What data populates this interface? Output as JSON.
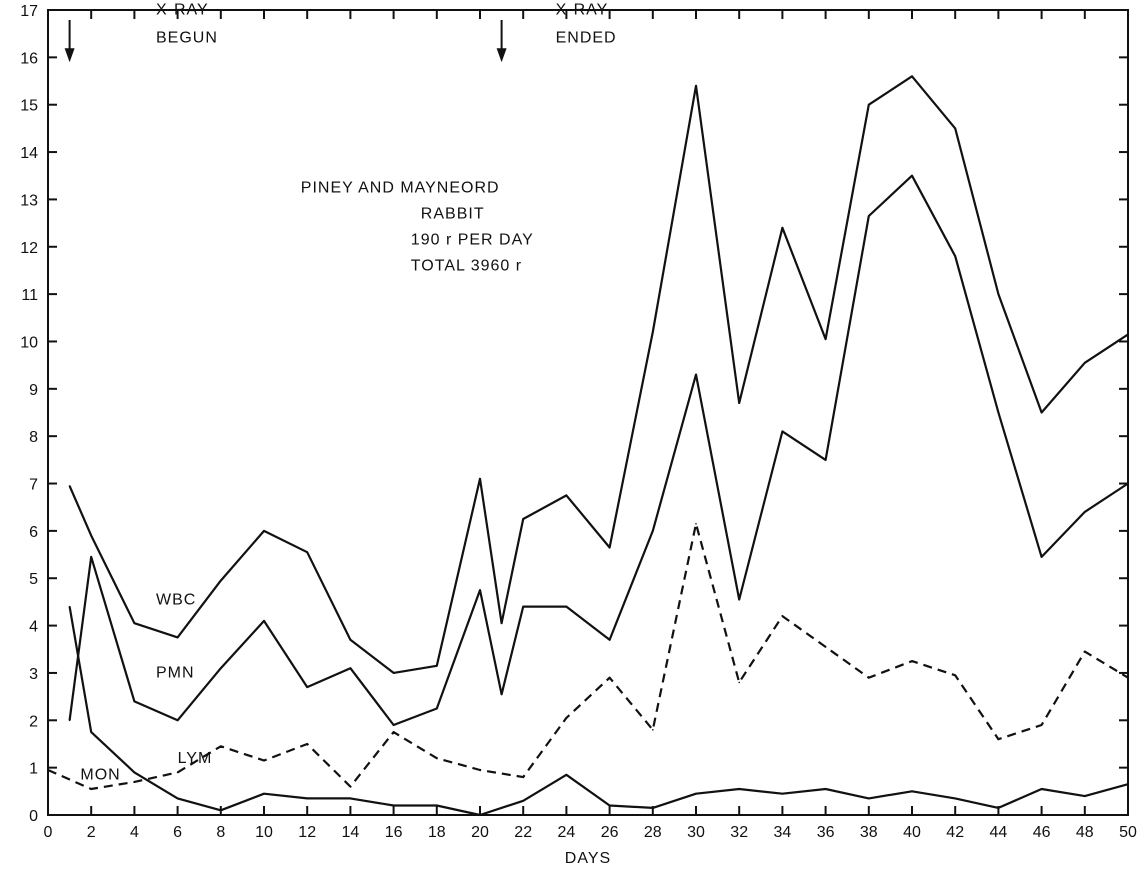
{
  "chart_data": {
    "type": "line",
    "title": "",
    "xlabel": "DAYS",
    "ylabel": "",
    "xlim": [
      0,
      50
    ],
    "ylim": [
      0,
      17
    ],
    "grid": false,
    "x_ticks": [
      0,
      2,
      4,
      6,
      8,
      10,
      12,
      14,
      16,
      18,
      20,
      22,
      24,
      26,
      28,
      30,
      32,
      34,
      36,
      38,
      40,
      42,
      44,
      46,
      48,
      50
    ],
    "y_ticks": [
      0,
      1,
      2,
      3,
      4,
      5,
      6,
      7,
      8,
      9,
      10,
      11,
      12,
      13,
      14,
      15,
      16,
      17
    ],
    "series": [
      {
        "name": "WBC",
        "style": "solid",
        "x": [
          1,
          2,
          4,
          6,
          8,
          10,
          12,
          14,
          16,
          18,
          20,
          21,
          22,
          24,
          26,
          28,
          30,
          32,
          34,
          36,
          38,
          40,
          42,
          44,
          46,
          48,
          50
        ],
        "y": [
          6.95,
          5.9,
          4.05,
          3.75,
          4.95,
          6.0,
          5.55,
          3.7,
          3.0,
          3.15,
          7.1,
          4.05,
          6.25,
          6.75,
          5.65,
          10.2,
          15.4,
          8.7,
          12.4,
          10.05,
          15.0,
          15.6,
          14.5,
          11.0,
          8.5,
          9.55,
          10.15
        ]
      },
      {
        "name": "PMN",
        "style": "solid",
        "x": [
          1,
          2,
          4,
          6,
          8,
          10,
          12,
          14,
          16,
          18,
          20,
          21,
          22,
          24,
          26,
          28,
          30,
          32,
          34,
          36,
          38,
          40,
          42,
          44,
          46,
          48,
          50
        ],
        "y": [
          2.0,
          5.45,
          2.4,
          2.0,
          3.1,
          4.1,
          2.7,
          3.1,
          1.9,
          2.25,
          4.75,
          2.55,
          4.4,
          4.4,
          3.7,
          6.0,
          9.3,
          4.55,
          8.1,
          7.5,
          12.65,
          13.5,
          11.8,
          8.5,
          5.45,
          6.4,
          7.0
        ]
      },
      {
        "name": "LYM",
        "style": "dashed",
        "x": [
          0,
          2,
          4,
          6,
          8,
          10,
          12,
          14,
          16,
          18,
          20,
          22,
          24,
          26,
          28,
          30,
          32,
          34,
          36,
          38,
          40,
          42,
          44,
          46,
          48,
          50
        ],
        "y": [
          0.95,
          0.55,
          0.7,
          0.9,
          1.45,
          1.15,
          1.5,
          0.6,
          1.75,
          1.2,
          0.95,
          0.8,
          2.05,
          2.9,
          1.8,
          6.15,
          2.8,
          4.2,
          3.55,
          2.9,
          3.25,
          2.95,
          1.6,
          1.9,
          3.45,
          2.9
        ]
      },
      {
        "name": "MON",
        "style": "solid",
        "x": [
          1,
          2,
          4,
          6,
          8,
          10,
          12,
          14,
          16,
          18,
          20,
          22,
          24,
          26,
          28,
          30,
          32,
          34,
          36,
          38,
          40,
          42,
          44,
          46,
          48,
          50
        ],
        "y": [
          4.4,
          1.75,
          0.9,
          0.35,
          0.1,
          0.45,
          0.35,
          0.35,
          0.2,
          0.2,
          0.0,
          0.3,
          0.85,
          0.2,
          0.15,
          0.45,
          0.55,
          0.45,
          0.55,
          0.35,
          0.5,
          0.35,
          0.15,
          0.55,
          0.4,
          0.65
        ]
      }
    ],
    "series_labels": [
      {
        "text": "WBC",
        "x": 5,
        "y": 4.45
      },
      {
        "text": "PMN",
        "x": 5,
        "y": 2.9
      },
      {
        "text": "LYM",
        "x": 6,
        "y": 1.1
      },
      {
        "text": "MON",
        "x": 1.5,
        "y": 0.75
      }
    ],
    "annotations": [
      {
        "lines": [
          "X-RAY",
          "BEGUN"
        ],
        "arrow_x": 1,
        "x": 5,
        "y": 16.9
      },
      {
        "lines": [
          "X-RAY",
          "ENDED"
        ],
        "arrow_x": 21,
        "x": 23.5,
        "y": 16.9
      }
    ],
    "text_block": {
      "x": 15.5,
      "y": 13.15,
      "lines": [
        "PINEY AND MAYNEORD",
        "RABBIT",
        "190 r  PER  DAY",
        "TOTAL 3960  r"
      ]
    }
  }
}
